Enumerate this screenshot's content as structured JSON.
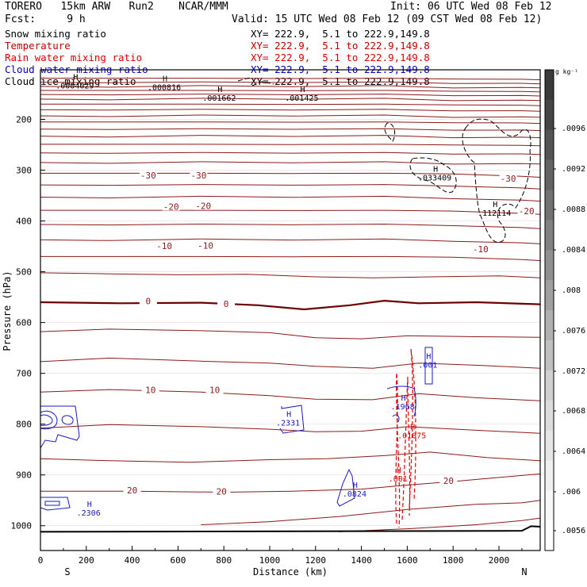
{
  "header": {
    "model": "TORERO   15km ARW   Run2    NCAR/MMM",
    "init": "Init: 06 UTC Wed 08 Feb 12",
    "fcst": "Fcst:     9 h",
    "valid": "Valid: 15 UTC Wed 08 Feb 12 (09 CST Wed 08 Feb 12)"
  },
  "legend": [
    {
      "label": "Snow mixing ratio",
      "xy": "XY= 222.9,  5.1 to 222.9,149.8",
      "color": "#000000"
    },
    {
      "label": "Temperature",
      "xy": "XY= 222.9,  5.1 to 222.9,149.8",
      "color": "#c00000"
    },
    {
      "label": "Rain water mixing ratio",
      "xy": "XY= 222.9,  5.1 to 222.9,149.8",
      "color": "#e00000"
    },
    {
      "label": "Cloud water mixing ratio",
      "xy": "XY= 222.9,  5.1 to 222.9,149.8",
      "color": "#0000c0"
    },
    {
      "label": "Cloud ice mixing ratio",
      "xy": "XY= 222.9,  5.1 to 222.9,149.8",
      "color": "#000000"
    }
  ],
  "chart_data": {
    "type": "cross-section contour",
    "xlabel": "Distance (km)",
    "ylabel": "Pressure (hPa)",
    "xlim": [
      0,
      2180
    ],
    "ylim": [
      1050,
      120
    ],
    "x_ticks": [
      0,
      200,
      400,
      600,
      800,
      1000,
      1200,
      1400,
      1600,
      1800,
      2000
    ],
    "y_ticks": [
      200,
      300,
      400,
      500,
      600,
      700,
      800,
      900,
      1000
    ],
    "endpoints": {
      "left": "S",
      "right": "N"
    },
    "temperature_isotherm_spacing_c": 5,
    "temperature_labels": [
      {
        "x": 470,
        "p": 312,
        "text": "-30"
      },
      {
        "x": 690,
        "p": 312,
        "text": "-30"
      },
      {
        "x": 2040,
        "p": 318,
        "text": "-30"
      },
      {
        "x": 570,
        "p": 373,
        "text": "-20"
      },
      {
        "x": 710,
        "p": 372,
        "text": "-20"
      },
      {
        "x": 2120,
        "p": 382,
        "text": "-20"
      },
      {
        "x": 540,
        "p": 451,
        "text": "-10"
      },
      {
        "x": 720,
        "p": 450,
        "text": "-10"
      },
      {
        "x": 1920,
        "p": 457,
        "text": "-10"
      },
      {
        "x": 470,
        "p": 559,
        "text": "0"
      },
      {
        "x": 810,
        "p": 565,
        "text": "0"
      },
      {
        "x": 480,
        "p": 734,
        "text": "10"
      },
      {
        "x": 760,
        "p": 734,
        "text": "10"
      },
      {
        "x": 400,
        "p": 932,
        "text": "20"
      },
      {
        "x": 790,
        "p": 934,
        "text": "20"
      },
      {
        "x": 1780,
        "p": 913,
        "text": "20"
      }
    ],
    "maxima_labels": [
      {
        "x": 150,
        "p": 139,
        "text": ".0004029"
      },
      {
        "x": 540,
        "p": 142,
        "text": ".000816"
      },
      {
        "x": 780,
        "p": 163,
        "text": ".001662"
      },
      {
        "x": 1140,
        "p": 163,
        "text": ".001425"
      },
      {
        "x": 1720,
        "p": 320,
        "text": ".033409"
      },
      {
        "x": 1980,
        "p": 390,
        "text": ".112114"
      },
      {
        "x": 1080,
        "p": 803,
        "text": ".2331"
      },
      {
        "x": 1580,
        "p": 771,
        "text": ".1968"
      },
      {
        "x": 1620,
        "p": 828,
        "text": ".01875"
      },
      {
        "x": 1690,
        "p": 689,
        "text": ".001"
      },
      {
        "x": 1560,
        "p": 913,
        "text": ".001"
      },
      {
        "x": 1370,
        "p": 943,
        "text": ".0824"
      },
      {
        "x": 210,
        "p": 980,
        "text": ".2306"
      }
    ],
    "colorbar": {
      "unit": "g kg⁻¹",
      "tick_labels": [
        ".0096",
        ".0092",
        ".0088",
        ".0084",
        ".008",
        ".0076",
        ".0072",
        ".0068",
        ".0064",
        ".006",
        ".0056"
      ],
      "colors": [
        "#3a3a3a",
        "#454545",
        "#545454",
        "#636363",
        "#727272",
        "#818181",
        "#909090",
        "#a0a0a0",
        "#b0b0b0",
        "#c0c0c0",
        "#d0d0d0",
        "#dcdcdc",
        "#e6e6e6",
        "#f0f0f0",
        "#f8f8f8",
        "#ffffff"
      ]
    }
  }
}
